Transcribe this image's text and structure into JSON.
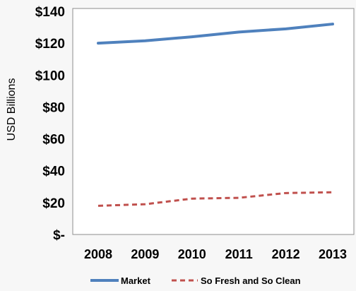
{
  "chart_data": {
    "type": "line",
    "title": "",
    "xlabel": "",
    "ylabel": "USD Billions",
    "categories": [
      "2008",
      "2009",
      "2010",
      "2011",
      "2012",
      "2013"
    ],
    "ylim": [
      0,
      140
    ],
    "yticks": [
      0,
      20,
      40,
      60,
      80,
      100,
      120,
      140
    ],
    "ytick_labels": [
      "$-",
      "$20",
      "$40",
      "$60",
      "$80",
      "$100",
      "$120",
      "$140"
    ],
    "grid": false,
    "legend_position": "bottom",
    "series": [
      {
        "name": "Market",
        "values": [
          120,
          121.5,
          124,
          127,
          129,
          132
        ],
        "color": "#4f81bd",
        "style": "solid"
      },
      {
        "name": "So Fresh and So Clean",
        "values": [
          18,
          19,
          22.5,
          23,
          26,
          26.5
        ],
        "color": "#c0504d",
        "style": "dashed"
      }
    ]
  }
}
